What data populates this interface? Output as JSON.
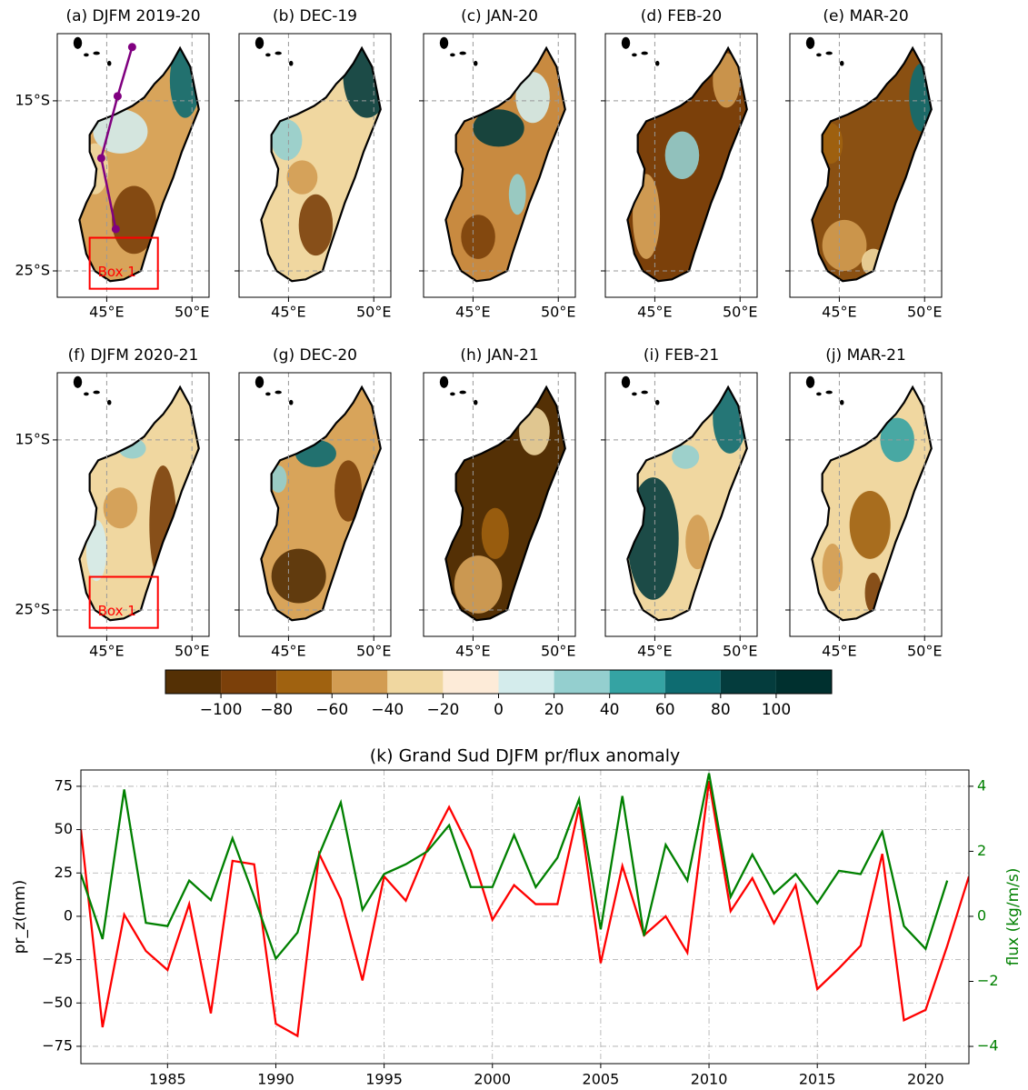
{
  "chart_data": [
    {
      "type": "map",
      "panels": [
        {
          "title": "(a) DJFM 2019-20",
          "track": {
            "lon": [
              45.53,
              44.68,
              45.64,
              46.49
            ],
            "lat": [
              -22.54,
              -18.37,
              -14.73,
              -11.84
            ],
            "color": "#800080"
          },
          "box": {
            "label": "Box 1",
            "lon": [
              44.0,
              48.0
            ],
            "lat": [
              -26.05,
              -23.05
            ],
            "color": "#ff0000"
          }
        },
        {
          "title": "(b) DEC-19"
        },
        {
          "title": "(c) JAN-20"
        },
        {
          "title": "(d) FEB-20"
        },
        {
          "title": "(e) MAR-20"
        },
        {
          "title": "(f) DJFM 2020-21",
          "box": {
            "label": "Box 1",
            "lon": [
              44.0,
              48.0
            ],
            "lat": [
              -26.05,
              -23.05
            ],
            "color": "#ff0000"
          }
        },
        {
          "title": "(g) DEC-20"
        },
        {
          "title": "(h) JAN-21"
        },
        {
          "title": "(i) FEB-21"
        },
        {
          "title": "(j) MAR-21"
        }
      ],
      "xlim": [
        42.1,
        51.0
      ],
      "ylim": [
        -26.55,
        -11.05
      ],
      "xticks": [
        {
          "value": 45,
          "label": "45°E"
        },
        {
          "value": 50,
          "label": "50°E"
        }
      ],
      "yticks": [
        {
          "value": -15,
          "label": "15°S"
        },
        {
          "value": -25,
          "label": "25°S"
        }
      ],
      "grid": true
    },
    {
      "type": "colorbar",
      "bounds": [
        -120,
        -100,
        -80,
        -60,
        -40,
        -20,
        0,
        20,
        40,
        60,
        80,
        100,
        120
      ],
      "colors": [
        "#543005",
        "#7b400a",
        "#a06210",
        "#d29c52",
        "#f0d7a0",
        "#fdebd8",
        "#d4ecec",
        "#94cfcf",
        "#35a3a3",
        "#0e6c71",
        "#043c3d",
        "#00302f"
      ],
      "xlim": [
        -120,
        120
      ],
      "xticks": [
        {
          "value": -100,
          "label": "−100"
        },
        {
          "value": -80,
          "label": "−80"
        },
        {
          "value": -60,
          "label": "−60"
        },
        {
          "value": -40,
          "label": "−40"
        },
        {
          "value": -20,
          "label": "−20"
        },
        0,
        20,
        40,
        60,
        80,
        100
      ]
    },
    {
      "type": "line",
      "title": "(k) Grand Sud DJFM pr/flux anomaly",
      "ylabel": "pr_z(mm)",
      "y2label": "flux (kg/m/s)",
      "x": [
        1981,
        1982,
        1983,
        1984,
        1985,
        1986,
        1987,
        1988,
        1989,
        1990,
        1991,
        1992,
        1993,
        1994,
        1995,
        1996,
        1997,
        1998,
        1999,
        2000,
        2001,
        2002,
        2003,
        2004,
        2005,
        2006,
        2007,
        2008,
        2009,
        2010,
        2011,
        2012,
        2013,
        2014,
        2015,
        2016,
        2017,
        2018,
        2019,
        2020,
        2021,
        2022
      ],
      "series": [
        {
          "color": "#ff0000",
          "values": [
            50,
            -64,
            1,
            -20,
            -31,
            7,
            -56,
            32,
            30,
            -62,
            -69,
            36,
            10,
            -37,
            23,
            9,
            39,
            63,
            38,
            -2,
            18,
            7,
            7,
            63,
            -27,
            29,
            -11,
            0,
            -21,
            78,
            3,
            22,
            -4,
            18,
            -42,
            -30,
            -17,
            36,
            -60,
            -54,
            -17,
            23
          ]
        },
        {
          "color": "#008000",
          "axis": "y2",
          "values": [
            1.3,
            -0.7,
            3.9,
            -0.2,
            -0.3,
            1.1,
            0.5,
            2.4,
            0.6,
            -1.3,
            -0.5,
            1.9,
            3.5,
            0.2,
            1.3,
            1.6,
            2.0,
            2.8,
            0.9,
            0.9,
            2.5,
            0.9,
            1.8,
            3.6,
            -0.4,
            3.7,
            -0.6,
            2.2,
            1.1,
            4.4,
            0.6,
            1.9,
            0.7,
            1.3,
            0.4,
            1.4,
            1.3,
            2.6,
            -0.3,
            -1.0,
            1.1,
            null
          ]
        }
      ],
      "xlim": [
        1981,
        2022
      ],
      "ylim": [
        -85,
        84.4
      ],
      "y2lim": [
        -4.53,
        4.5
      ],
      "xticks": [
        1985,
        1990,
        1995,
        2000,
        2005,
        2010,
        2015,
        2020
      ],
      "yticks": [
        {
          "value": -75,
          "label": "−75"
        },
        {
          "value": -50,
          "label": "−50"
        },
        {
          "value": -25,
          "label": "−25"
        },
        0,
        25,
        50,
        75
      ],
      "y2ticks": [
        {
          "value": -4,
          "label": "−4"
        },
        {
          "value": -2,
          "label": "−2"
        },
        0,
        2,
        4
      ],
      "grid": true
    }
  ]
}
